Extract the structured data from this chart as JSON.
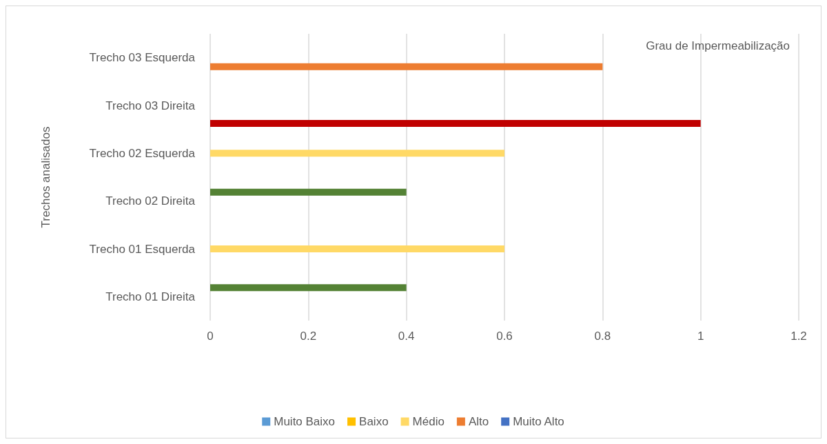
{
  "chart_data": {
    "type": "bar",
    "orientation": "horizontal",
    "title": "Grau de Impermeabilização",
    "ylabel": "Trechos analisados",
    "categories": [
      "Trecho 03 Esquerda",
      "Trecho 03 Direita",
      "Trecho 02 Esquerda",
      "Trecho 02 Direita",
      "Trecho 01 Esquerda",
      "Trecho 01 Direita"
    ],
    "series": [
      {
        "name": "Muito Baixo",
        "color": "#5b9bd5",
        "values": [
          null,
          null,
          null,
          null,
          null,
          null
        ]
      },
      {
        "name": "Baixo",
        "color": "#ffc000",
        "values": [
          null,
          null,
          null,
          null,
          null,
          null
        ]
      },
      {
        "color": "#548235",
        "values": [
          null,
          null,
          null,
          0.4,
          null,
          0.4
        ]
      },
      {
        "name": "Médio",
        "color": "#ffd966",
        "values": [
          null,
          null,
          0.6,
          null,
          0.6,
          null
        ]
      },
      {
        "name": "Alto",
        "color": "#ed7d31",
        "values": [
          0.8,
          null,
          null,
          null,
          null,
          null
        ]
      },
      {
        "name": "Muito Alto",
        "color": "#4472c4",
        "values": [
          null,
          null,
          null,
          null,
          null,
          null
        ]
      },
      {
        "color": "#c00000",
        "values": [
          null,
          1,
          null,
          null,
          null,
          null
        ]
      }
    ],
    "xlim": [
      0,
      1.2
    ],
    "xticks": [
      0,
      0.2,
      0.4,
      0.6,
      0.8,
      1,
      1.2
    ],
    "grid": "x",
    "legend": "bottom"
  }
}
